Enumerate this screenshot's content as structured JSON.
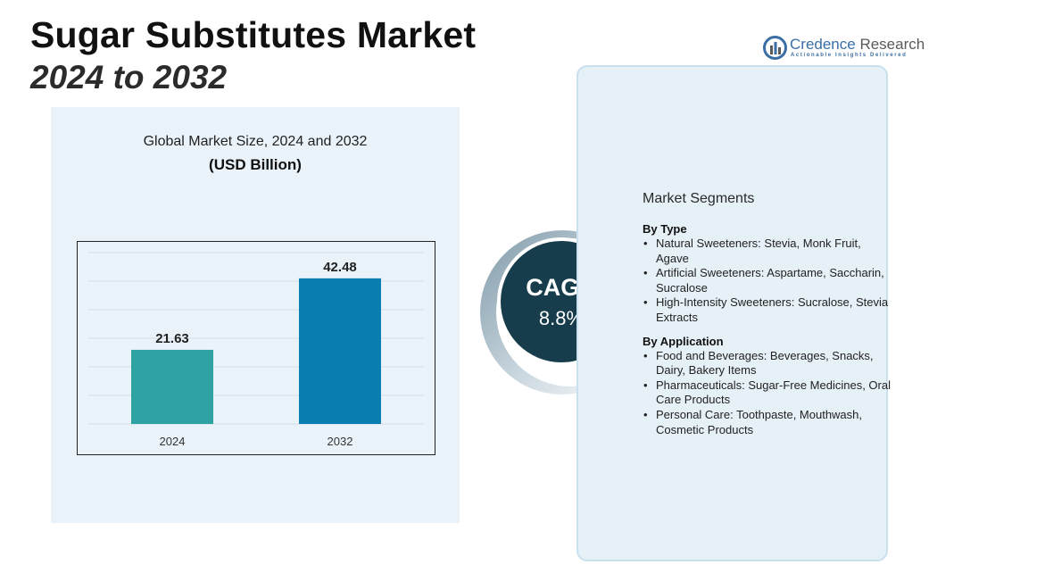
{
  "header": {
    "title": "Sugar Substitutes Market",
    "subtitle": "2024 to 2032"
  },
  "brand": {
    "name_part1": "Credence",
    "name_part2": "Research",
    "tagline": "Actionable Insights Delivered",
    "logo_icon": "credence-logo-icon",
    "color": "#3a6ea5"
  },
  "chart_data": {
    "type": "bar",
    "title": "Global Market Size, 2024 and 2032",
    "unit_label": "(USD Billion)",
    "categories": [
      "2024",
      "2032"
    ],
    "values": [
      21.63,
      42.48
    ],
    "value_labels": [
      "21.63",
      "42.48"
    ],
    "colors": [
      "#2fa3a3",
      "#0a7db3"
    ],
    "xlabel": "",
    "ylabel": "",
    "grid": true,
    "legend": "none"
  },
  "cagr": {
    "label": "CAGR",
    "value": "8.8%"
  },
  "segments": {
    "title": "Market Segments",
    "bullet": "•",
    "groups": [
      {
        "title": "By Type",
        "items": [
          "Natural Sweeteners: Stevia, Monk Fruit, Agave",
          "Artificial Sweeteners: Aspartame, Saccharin, Sucralose",
          "High-Intensity Sweeteners: Sucralose, Stevia Extracts"
        ]
      },
      {
        "title": "By Application",
        "items": [
          "Food and Beverages: Beverages, Snacks, Dairy, Bakery Items",
          "Pharmaceuticals: Sugar-Free Medicines, Oral Care Products",
          "Personal Care: Toothpaste, Mouthwash, Cosmetic Products"
        ]
      }
    ]
  }
}
